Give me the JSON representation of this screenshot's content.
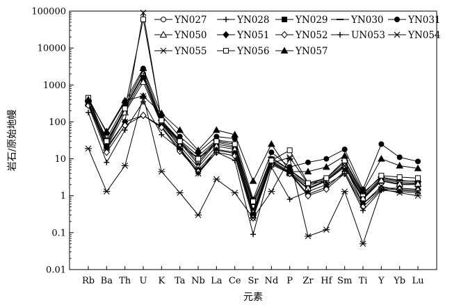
{
  "chart_data": {
    "type": "line",
    "scale": "log",
    "ylim": [
      0.01,
      100000
    ],
    "xlabel": "元素",
    "ylabel": "岩石/原始地幔",
    "grid": false,
    "legend_position": "top-right",
    "categories": [
      "Rb",
      "Ba",
      "Th",
      "U",
      "K",
      "Ta",
      "Nb",
      "La",
      "Ce",
      "Sr",
      "Nd",
      "P",
      "Zr",
      "Hf",
      "Sm",
      "Ti",
      "Y",
      "Yb",
      "Lu"
    ],
    "y_ticks": [
      {
        "value": 0.01,
        "label": "0.01"
      },
      {
        "value": 0.1,
        "label": "0.1"
      },
      {
        "value": 1,
        "label": "1"
      },
      {
        "value": 10,
        "label": "10"
      },
      {
        "value": 100,
        "label": "100"
      },
      {
        "value": 1000,
        "label": "1000"
      },
      {
        "value": 10000,
        "label": "10000"
      },
      {
        "value": 100000,
        "label": "100000"
      }
    ],
    "series": [
      {
        "name": "YN027",
        "marker": "circle-open",
        "values": [
          400,
          25,
          250,
          2000,
          100,
          30,
          8,
          30,
          25,
          0.5,
          10,
          5,
          2,
          3,
          8,
          1,
          3,
          2.5,
          2.5
        ]
      },
      {
        "name": "YN028",
        "marker": "plus",
        "values": [
          350,
          22,
          230,
          1800,
          95,
          28,
          7,
          28,
          22,
          0.4,
          9,
          4.5,
          1.8,
          2.8,
          7,
          0.9,
          2.8,
          2.3,
          2.2
        ]
      },
      {
        "name": "YN029",
        "marker": "square-filled",
        "values": [
          300,
          30,
          200,
          1500,
          90,
          25,
          10,
          25,
          20,
          0.3,
          8,
          4,
          1.5,
          2.5,
          6,
          0.8,
          2.5,
          2,
          2
        ]
      },
      {
        "name": "YN030",
        "marker": "dash",
        "values": [
          380,
          35,
          280,
          2500,
          110,
          32,
          12,
          32,
          28,
          0.6,
          11,
          5,
          2.2,
          3,
          9,
          1.2,
          3.2,
          2.6,
          2.4
        ]
      },
      {
        "name": "YN031",
        "marker": "circle-filled",
        "values": [
          450,
          50,
          350,
          2800,
          150,
          40,
          15,
          40,
          35,
          0.8,
          15,
          6,
          8,
          10,
          18,
          1.5,
          25,
          11,
          8.5
        ]
      },
      {
        "name": "YN050",
        "marker": "triangle-open",
        "values": [
          320,
          20,
          180,
          1200,
          85,
          22,
          6,
          22,
          18,
          0.35,
          8.5,
          4.2,
          1.6,
          2.6,
          6.5,
          0.85,
          2.6,
          2.1,
          2.1
        ]
      },
      {
        "name": "YN051",
        "marker": "diamond-filled",
        "values": [
          300,
          20,
          100,
          150,
          75,
          18,
          5,
          17,
          14,
          0.3,
          7.5,
          4.2,
          1.1,
          1.7,
          4.5,
          0.6,
          1.6,
          1.6,
          1.5
        ]
      },
      {
        "name": "YN052",
        "marker": "diamond-open",
        "values": [
          280,
          15,
          80,
          150,
          70,
          16,
          4.5,
          15,
          12,
          0.25,
          7,
          4,
          1,
          1.5,
          4,
          0.5,
          1.5,
          1.5,
          1.4
        ]
      },
      {
        "name": "UN053",
        "marker": "plus",
        "values": [
          180,
          8,
          60,
          350,
          45,
          18,
          4,
          15,
          9,
          0.09,
          6,
          0.8,
          1.3,
          2,
          4,
          0.4,
          1.4,
          1.3,
          1.2
        ]
      },
      {
        "name": "YN054",
        "marker": "x",
        "values": [
          330,
          18,
          100,
          90000,
          100,
          20,
          4,
          18,
          15,
          0.3,
          7.5,
          11,
          2.1,
          2.5,
          6.5,
          0.6,
          1.8,
          1.4,
          1.3
        ]
      },
      {
        "name": "YN055",
        "marker": "asterisk",
        "values": [
          19,
          1.3,
          6.5,
          500,
          4.5,
          1.2,
          0.3,
          2.8,
          1.2,
          0.25,
          1.3,
          10,
          0.08,
          0.12,
          1.3,
          0.05,
          1.5,
          1.2,
          1
        ]
      },
      {
        "name": "YN056",
        "marker": "square-open",
        "values": [
          450,
          30,
          230,
          60000,
          110,
          30,
          10,
          30,
          25,
          0.7,
          9,
          17,
          2.2,
          3,
          9,
          1.1,
          3.5,
          3.2,
          3
        ]
      },
      {
        "name": "YN057",
        "marker": "triangle-filled",
        "values": [
          400,
          55,
          380,
          500,
          170,
          60,
          17,
          60,
          45,
          2.5,
          25,
          4.5,
          4.5,
          6,
          12,
          1.3,
          10,
          6.5,
          5.5
        ]
      }
    ]
  }
}
